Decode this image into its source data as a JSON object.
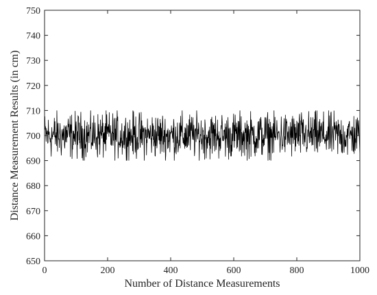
{
  "chart_data": {
    "type": "line",
    "xlabel": "Number of Distance Measurements",
    "ylabel": "Distance Measurement Results (in cm)",
    "xlim": [
      0,
      1000
    ],
    "ylim": [
      650,
      750
    ],
    "xticks": [
      0,
      200,
      400,
      600,
      800,
      1000
    ],
    "yticks": [
      650,
      660,
      670,
      680,
      690,
      700,
      710,
      720,
      730,
      740,
      750
    ],
    "grid": false,
    "box": true,
    "series": [
      {
        "n_points": 1000,
        "center": 700,
        "min": 690,
        "max": 710,
        "color": "#000000"
      }
    ]
  }
}
